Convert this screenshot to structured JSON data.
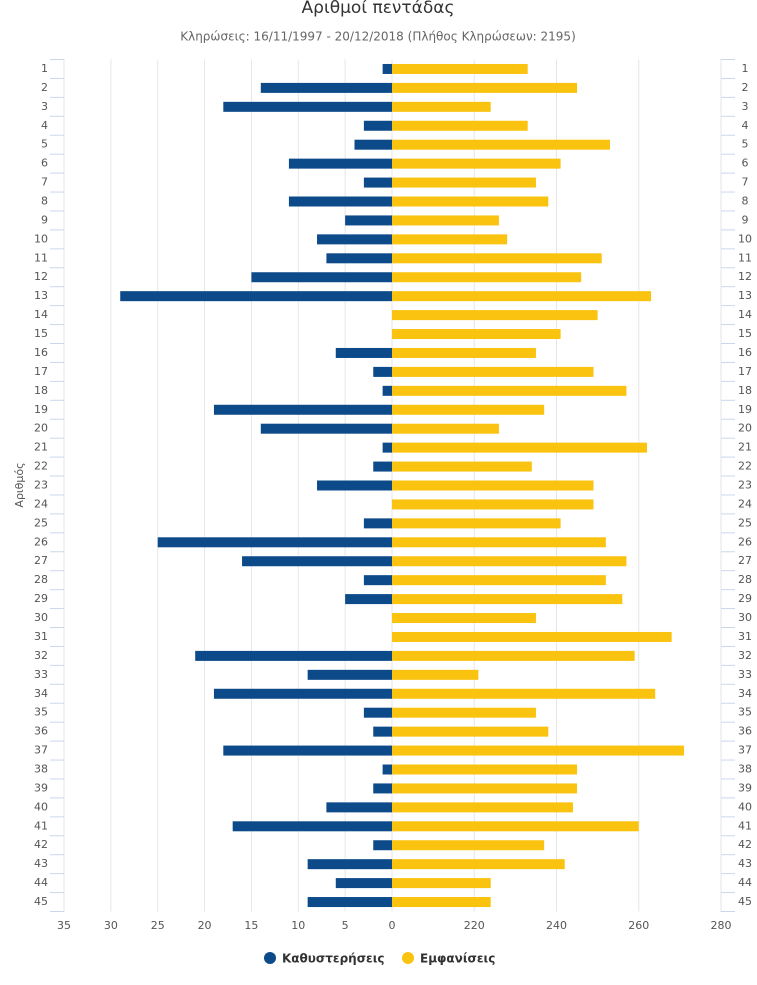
{
  "chart_data": {
    "type": "butterfly-bar",
    "title": "Αριθμοί πεντάδας",
    "subtitle": "Κληρώσεις: 16/11/1997 - 20/12/2018 (Πλήθος Κληρώσεων: 2195)",
    "y_label": "Αριθμός",
    "categories": [
      "1",
      "2",
      "3",
      "4",
      "5",
      "6",
      "7",
      "8",
      "9",
      "10",
      "11",
      "12",
      "13",
      "14",
      "15",
      "16",
      "17",
      "18",
      "19",
      "20",
      "21",
      "22",
      "23",
      "24",
      "25",
      "26",
      "27",
      "28",
      "29",
      "30",
      "31",
      "32",
      "33",
      "34",
      "35",
      "36",
      "37",
      "38",
      "39",
      "40",
      "41",
      "42",
      "43",
      "44",
      "45"
    ],
    "series": [
      {
        "name": "Καθυστερήσεις",
        "color": "#0d4a8a",
        "axis": "x",
        "values": [
          1,
          14,
          18,
          3,
          4,
          11,
          3,
          11,
          5,
          8,
          7,
          15,
          29,
          0,
          0,
          6,
          2,
          1,
          19,
          14,
          1,
          2,
          8,
          0,
          3,
          25,
          16,
          3,
          5,
          0,
          0,
          21,
          9,
          19,
          3,
          2,
          18,
          1,
          2,
          7,
          17,
          2,
          9,
          6,
          9
        ]
      },
      {
        "name": "Εμφανίσεις",
        "color": "#f9c30f",
        "axis": "x2",
        "values": [
          233,
          245,
          224,
          233,
          253,
          241,
          235,
          238,
          226,
          228,
          251,
          246,
          263,
          250,
          241,
          235,
          249,
          257,
          237,
          226,
          262,
          234,
          249,
          249,
          241,
          252,
          257,
          252,
          256,
          235,
          268,
          259,
          221,
          264,
          235,
          238,
          271,
          245,
          245,
          244,
          260,
          237,
          242,
          224,
          224
        ]
      }
    ],
    "xlim": [
      35,
      0
    ],
    "xticks": [
      35,
      30,
      25,
      20,
      15,
      10,
      5,
      0
    ],
    "x2lim": [
      200,
      280
    ],
    "x2ticks": [
      220,
      240,
      260,
      280
    ],
    "grid": true
  }
}
